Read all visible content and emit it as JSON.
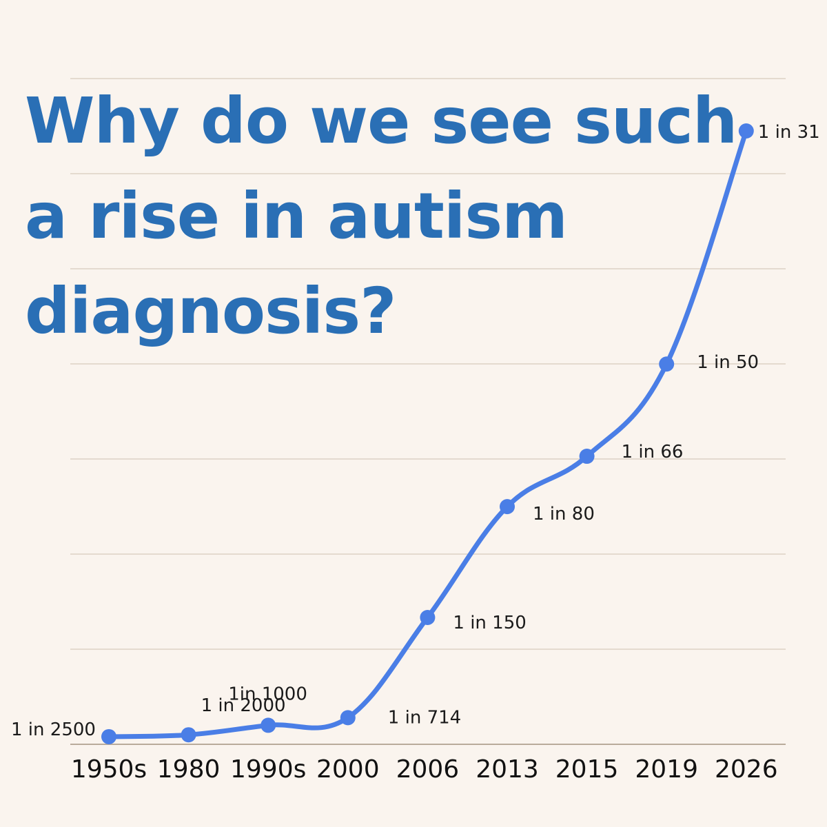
{
  "colors": {
    "background": "#faf4ee",
    "title": "#2a6fb5",
    "line": "#4a7ee6",
    "grid": "#d7cbbd",
    "axis": "#b9ab9b"
  },
  "chart_data": {
    "type": "line",
    "title_lines": [
      "Why do we see such",
      "a rise in autism",
      "diagnosis?"
    ],
    "xlabel": "",
    "ylabel": "",
    "categories": [
      "1950s",
      "1980",
      "1990s",
      "2000",
      "2006",
      "2013",
      "2015",
      "2019",
      "2026"
    ],
    "series": [
      {
        "values": [
          0.04,
          0.05,
          0.1,
          0.14,
          0.667,
          1.25,
          1.515,
          2.0,
          3.226
        ],
        "data_labels": [
          "1 in 2500",
          "1 in 2000",
          "1in 1000",
          "1 in 714",
          "1 in 150",
          "1 in 80",
          "1 in 66",
          "1 in 50",
          "1 in 31"
        ]
      }
    ],
    "ylim": [
      0,
      3.226
    ],
    "grid": true,
    "legend": "none"
  }
}
